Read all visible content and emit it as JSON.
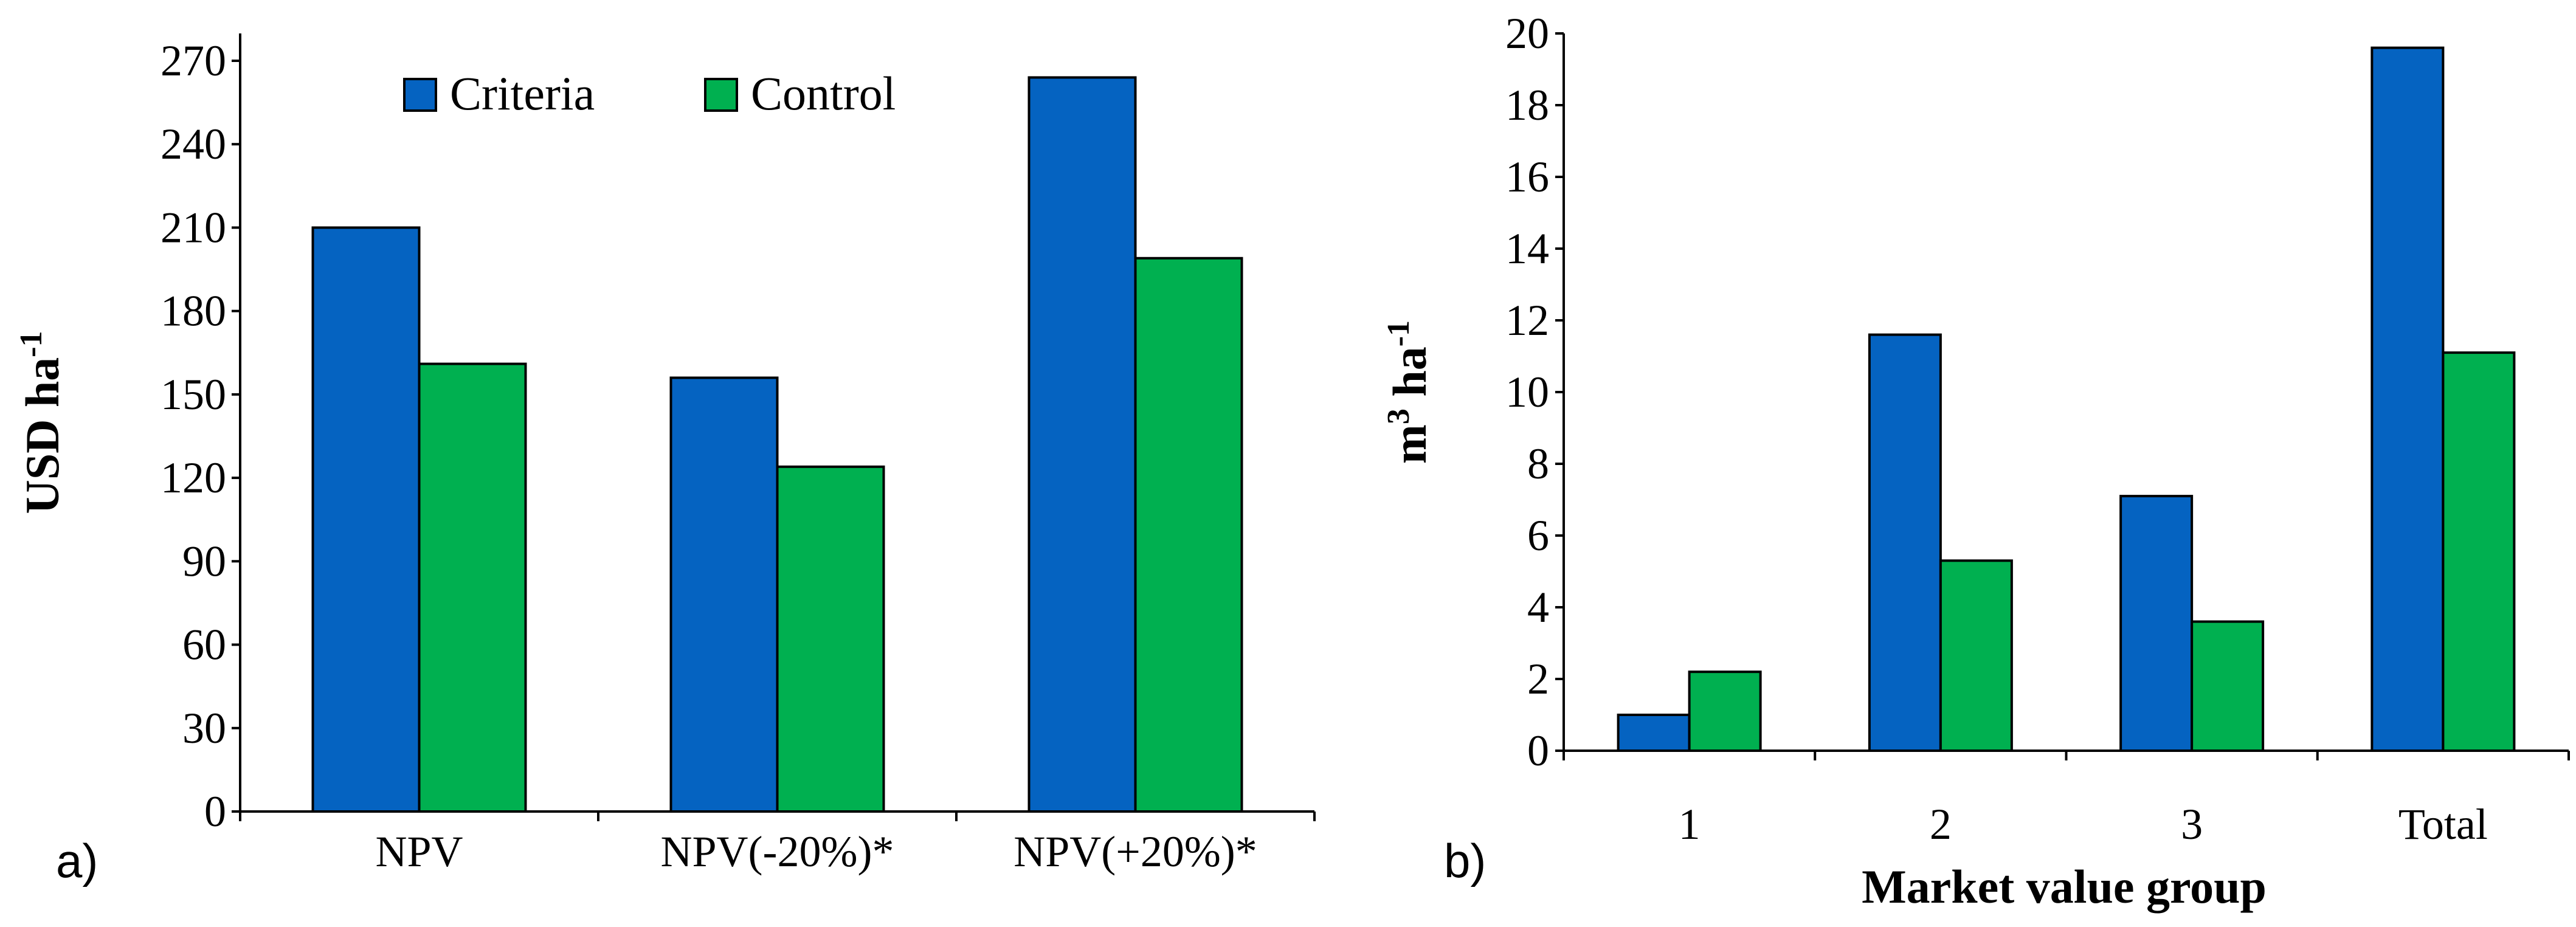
{
  "colors": {
    "criteria": "#0563C1",
    "control": "#00B050"
  },
  "chart_data": [
    {
      "type": "bar",
      "panel_label": "a)",
      "ylabel": "USD ha",
      "ylabel_sup": "-1",
      "xlabel": "",
      "ylim": [
        0,
        270
      ],
      "yticks": [
        "0",
        "30",
        "60",
        "90",
        "120",
        "150",
        "180",
        "210",
        "240",
        "270"
      ],
      "categories": [
        "NPV",
        "NPV(-20%)*",
        "NPV(+20%)*"
      ],
      "legend": {
        "placement": "top",
        "entries": [
          "Criteria",
          "Control"
        ]
      },
      "series": [
        {
          "name": "Criteria",
          "color_key": "criteria",
          "values": [
            210,
            156,
            264
          ]
        },
        {
          "name": "Control",
          "color_key": "control",
          "values": [
            161,
            124,
            199
          ]
        }
      ]
    },
    {
      "type": "bar",
      "panel_label": "b)",
      "ylabel": "m",
      "ylabel_sup1": "3",
      "ylabel_mid": " ha",
      "ylabel_sup2": "-1",
      "xlabel": "Market value group",
      "ylim": [
        0,
        20
      ],
      "yticks": [
        "0",
        "2",
        "4",
        "6",
        "8",
        "10",
        "12",
        "14",
        "16",
        "18",
        "20"
      ],
      "categories": [
        "1",
        "2",
        "3",
        "Total"
      ],
      "series": [
        {
          "name": "Criteria",
          "color_key": "criteria",
          "values": [
            1.0,
            11.6,
            7.1,
            19.6
          ]
        },
        {
          "name": "Control",
          "color_key": "control",
          "values": [
            2.2,
            5.3,
            3.6,
            11.1
          ]
        }
      ]
    }
  ]
}
